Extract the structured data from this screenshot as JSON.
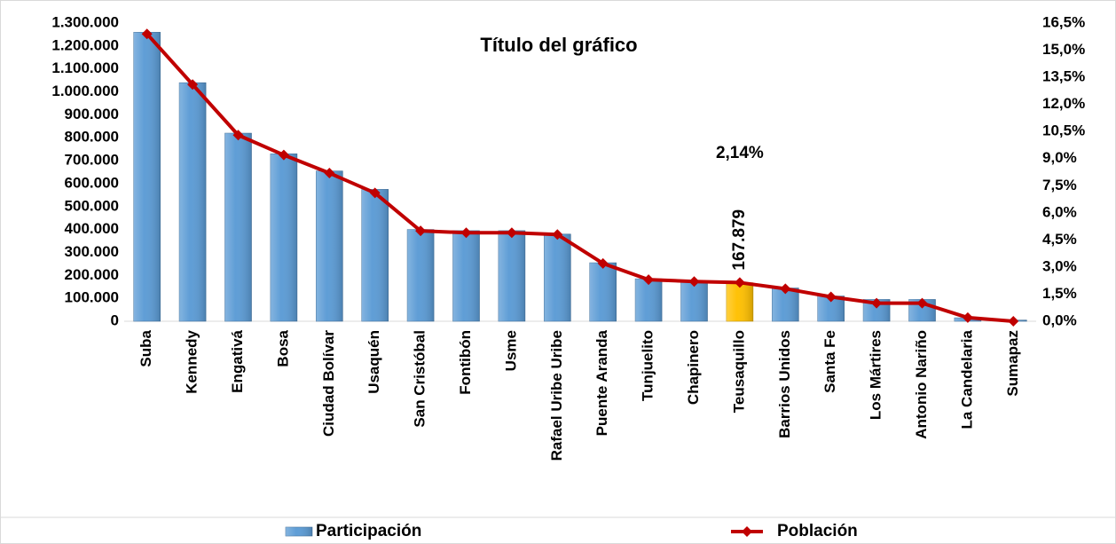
{
  "chart_data": {
    "type": "bar-line",
    "title": "Título del gráfico",
    "categories": [
      "Suba",
      "Kennedy",
      "Engativá",
      "Bosa",
      "Ciudad Bolívar",
      "Usaquén",
      "San Cristóbal",
      "Fontibón",
      "Usme",
      "Rafael Uribe Uribe",
      "Puente Aranda",
      "Tunjuelito",
      "Chapinero",
      "Teusaquillo",
      "Barrios Unidos",
      "Santa Fe",
      "Los Mártires",
      "Antonio Nariño",
      "La Candelaria",
      "Sumapaz"
    ],
    "series": [
      {
        "name": "Participación",
        "type": "bar",
        "axis": "y",
        "colors": [
          "#5b9bd5",
          "#5b9bd5",
          "#5b9bd5",
          "#5b9bd5",
          "#5b9bd5",
          "#5b9bd5",
          "#5b9bd5",
          "#5b9bd5",
          "#5b9bd5",
          "#5b9bd5",
          "#5b9bd5",
          "#5b9bd5",
          "#5b9bd5",
          "#ffc000",
          "#5b9bd5",
          "#5b9bd5",
          "#5b9bd5",
          "#5b9bd5",
          "#5b9bd5",
          "#5b9bd5"
        ],
        "values": [
          1260000,
          1040000,
          820000,
          730000,
          655000,
          575000,
          400000,
          395000,
          395000,
          380000,
          255000,
          185000,
          170000,
          167879,
          145000,
          110000,
          95000,
          95000,
          15000,
          5000
        ],
        "value_labels": [
          null,
          null,
          null,
          null,
          null,
          null,
          null,
          null,
          null,
          null,
          null,
          null,
          null,
          "167.879",
          null,
          null,
          null,
          null,
          null,
          null
        ]
      },
      {
        "name": "Población",
        "type": "line",
        "axis": "y2",
        "color": "#c00000",
        "values": [
          15.9,
          13.1,
          10.3,
          9.2,
          8.2,
          7.1,
          5.0,
          4.9,
          4.9,
          4.8,
          3.2,
          2.3,
          2.2,
          2.14,
          1.8,
          1.35,
          1.0,
          1.0,
          0.2,
          0.0
        ],
        "value_labels": [
          null,
          null,
          null,
          null,
          null,
          null,
          null,
          null,
          null,
          null,
          null,
          null,
          null,
          "2,14%",
          null,
          null,
          null,
          null,
          null,
          null
        ]
      }
    ],
    "ylim": [
      0,
      1300000
    ],
    "yticks": [
      0,
      {
        "value": 100000,
        "label": "100.000"
      },
      {
        "value": 200000,
        "label": "200.000"
      },
      {
        "value": 300000,
        "label": "300.000"
      },
      {
        "value": 400000,
        "label": "400.000"
      },
      {
        "value": 500000,
        "label": "500.000"
      },
      {
        "value": 600000,
        "label": "600.000"
      },
      {
        "value": 700000,
        "label": "700.000"
      },
      {
        "value": 800000,
        "label": "800.000"
      },
      {
        "value": 900000,
        "label": "900.000"
      },
      {
        "value": 1000000,
        "label": "1.000.000"
      },
      {
        "value": 1100000,
        "label": "1.100.000"
      },
      {
        "value": 1200000,
        "label": "1.200.000"
      },
      {
        "value": 1300000,
        "label": "1.300.000"
      }
    ],
    "y2lim": [
      0,
      16.5
    ],
    "y2ticks": [
      {
        "value": 0,
        "label": "0,0%"
      },
      {
        "value": 1.5,
        "label": "1,5%"
      },
      {
        "value": 3,
        "label": "3,0%"
      },
      {
        "value": 4.5,
        "label": "4,5%"
      },
      {
        "value": 6,
        "label": "6,0%"
      },
      {
        "value": 7.5,
        "label": "7,5%"
      },
      {
        "value": 9,
        "label": "9,0%"
      },
      {
        "value": 10.5,
        "label": "10,5%"
      },
      {
        "value": 12,
        "label": "12,0%"
      },
      {
        "value": 13.5,
        "label": "13,5%"
      },
      {
        "value": 15,
        "label": "15,0%"
      },
      {
        "value": 16.5,
        "label": "16,5%"
      }
    ],
    "legend": "bottom"
  }
}
